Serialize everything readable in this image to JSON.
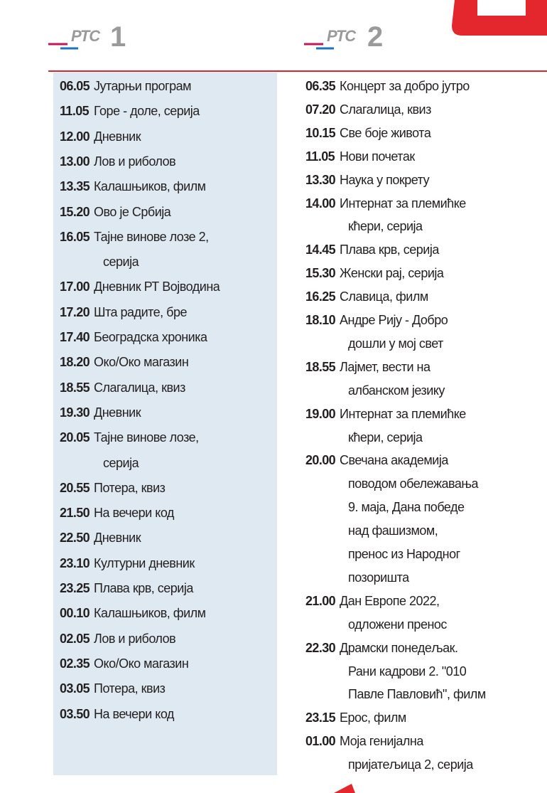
{
  "channels": [
    {
      "logo": "РТС",
      "number": "1",
      "programs": [
        {
          "time": "06.05",
          "lines": [
            "Јутарњи програм"
          ]
        },
        {
          "time": "11.05",
          "lines": [
            "Горе - доле, серија"
          ]
        },
        {
          "time": "12.00",
          "lines": [
            "Дневник"
          ]
        },
        {
          "time": "13.00",
          "lines": [
            "Лов и риболов"
          ]
        },
        {
          "time": "13.35",
          "lines": [
            "Калашњиков, филм"
          ]
        },
        {
          "time": "15.20",
          "lines": [
            "Ово је Србија"
          ]
        },
        {
          "time": "16.05",
          "lines": [
            "Тајне винове лозе 2,",
            "серија"
          ]
        },
        {
          "time": "17.00",
          "lines": [
            "Дневник РТ Војводина"
          ]
        },
        {
          "time": "17.20",
          "lines": [
            "Шта радите, бре"
          ]
        },
        {
          "time": "17.40",
          "lines": [
            "Београдска хроника"
          ]
        },
        {
          "time": "18.20",
          "lines": [
            "Око/Око магазин"
          ]
        },
        {
          "time": "18.55",
          "lines": [
            "Слагалица, квиз"
          ]
        },
        {
          "time": "19.30",
          "lines": [
            "Дневник"
          ]
        },
        {
          "time": "20.05",
          "lines": [
            "Тајне винове лозе,",
            "серија"
          ]
        },
        {
          "time": "20.55",
          "lines": [
            "Потера, квиз"
          ]
        },
        {
          "time": "21.50",
          "lines": [
            "На вечери код"
          ]
        },
        {
          "time": "22.50",
          "lines": [
            "Дневник"
          ]
        },
        {
          "time": "23.10",
          "lines": [
            "Културни дневник"
          ]
        },
        {
          "time": "23.25",
          "lines": [
            "Плава крв, серија"
          ]
        },
        {
          "time": "00.10",
          "lines": [
            "Калашњиков, филм"
          ]
        },
        {
          "time": "02.05",
          "lines": [
            "Лов и риболов"
          ]
        },
        {
          "time": "02.35",
          "lines": [
            "Око/Око магазин"
          ]
        },
        {
          "time": "03.05",
          "lines": [
            "Потера, квиз"
          ]
        },
        {
          "time": "03.50",
          "lines": [
            "На вечери код"
          ]
        }
      ]
    },
    {
      "logo": "РТС",
      "number": "2",
      "programs": [
        {
          "time": "06.35",
          "lines": [
            "Концерт за добро јутро"
          ]
        },
        {
          "time": "07.20",
          "lines": [
            "Слагалица, квиз"
          ]
        },
        {
          "time": "10.15",
          "lines": [
            "Све боје живота"
          ]
        },
        {
          "time": "11.05",
          "lines": [
            "Нови почетак"
          ]
        },
        {
          "time": "13.30",
          "lines": [
            "Наука у покрету"
          ]
        },
        {
          "time": "14.00",
          "lines": [
            "Интернат за племићке",
            "кћери, серија"
          ]
        },
        {
          "time": "14.45",
          "lines": [
            "Плава крв, серија"
          ]
        },
        {
          "time": "15.30",
          "lines": [
            "Женски рај, серија"
          ]
        },
        {
          "time": "16.25",
          "lines": [
            "Славица, филм"
          ]
        },
        {
          "time": "18.10",
          "lines": [
            "Андре Рију - Добро",
            "дошли у мој свет"
          ]
        },
        {
          "time": "18.55",
          "lines": [
            "Лајмет, вести на",
            "албанском језику"
          ]
        },
        {
          "time": "19.00",
          "lines": [
            "Интернат за племићке",
            "кћери, серија"
          ]
        },
        {
          "time": "20.00",
          "lines": [
            "Свечана академија",
            "поводом обележавања",
            "9. маја, Дана победе",
            "над фашизмом,",
            "пренос из Народног",
            "позоришта"
          ]
        },
        {
          "time": "21.00",
          "lines": [
            "Дан Европе 2022,",
            "одложени пренос"
          ]
        },
        {
          "time": "22.30",
          "lines": [
            "Драмски понедељак.",
            "Рани кадрови 2. \"010",
            "Павле Павловић\", филм"
          ]
        },
        {
          "time": "23.15",
          "lines": [
            "Ерос, филм"
          ]
        },
        {
          "time": "01.00",
          "lines": [
            "Моја генијална",
            "пријатељица 2, серија"
          ]
        }
      ]
    }
  ]
}
